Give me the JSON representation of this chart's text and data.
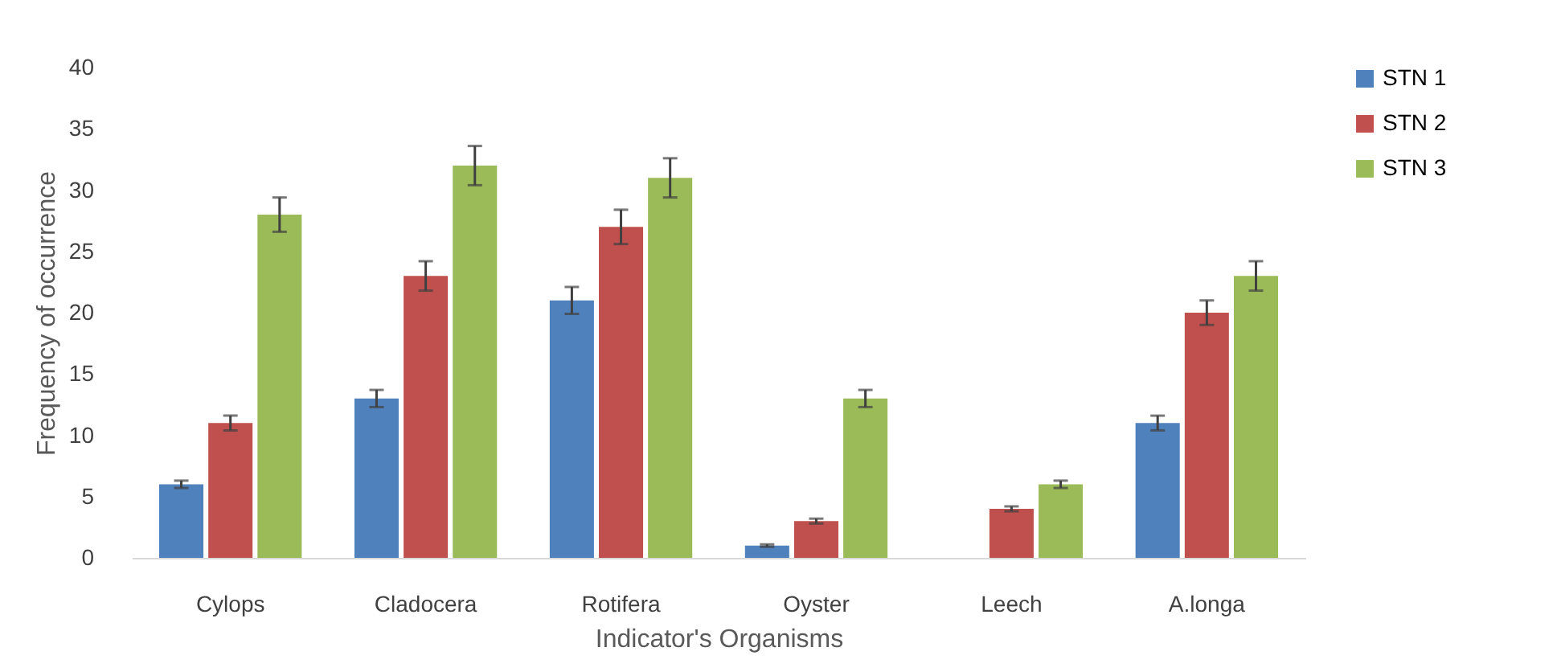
{
  "chart_data": {
    "type": "bar",
    "xlabel": "Indicator's Organisms",
    "ylabel": "Frequency of occurrence",
    "categories": [
      "Cylops",
      "Cladocera",
      "Rotifera",
      "Oyster",
      "Leech",
      "A.longa"
    ],
    "series": [
      {
        "name": "STN 1",
        "color": "#4f81bd",
        "values": [
          6,
          13,
          21,
          1,
          0,
          11
        ],
        "errors": [
          0.3,
          0.7,
          1.1,
          0.1,
          null,
          0.6
        ]
      },
      {
        "name": "STN 2",
        "color": "#c0504d",
        "values": [
          11,
          23,
          27,
          3,
          4,
          20
        ],
        "errors": [
          0.6,
          1.2,
          1.4,
          0.2,
          0.2,
          1.0
        ]
      },
      {
        "name": "STN 3",
        "color": "#9bbb59",
        "values": [
          28,
          32,
          31,
          13,
          6,
          23
        ],
        "errors": [
          1.4,
          1.6,
          1.6,
          0.7,
          0.3,
          1.2
        ]
      }
    ],
    "ylim": [
      0,
      40
    ],
    "yticks": [
      0,
      5,
      10,
      15,
      20,
      25,
      30,
      35,
      40
    ],
    "grid": false,
    "legend": "right"
  }
}
